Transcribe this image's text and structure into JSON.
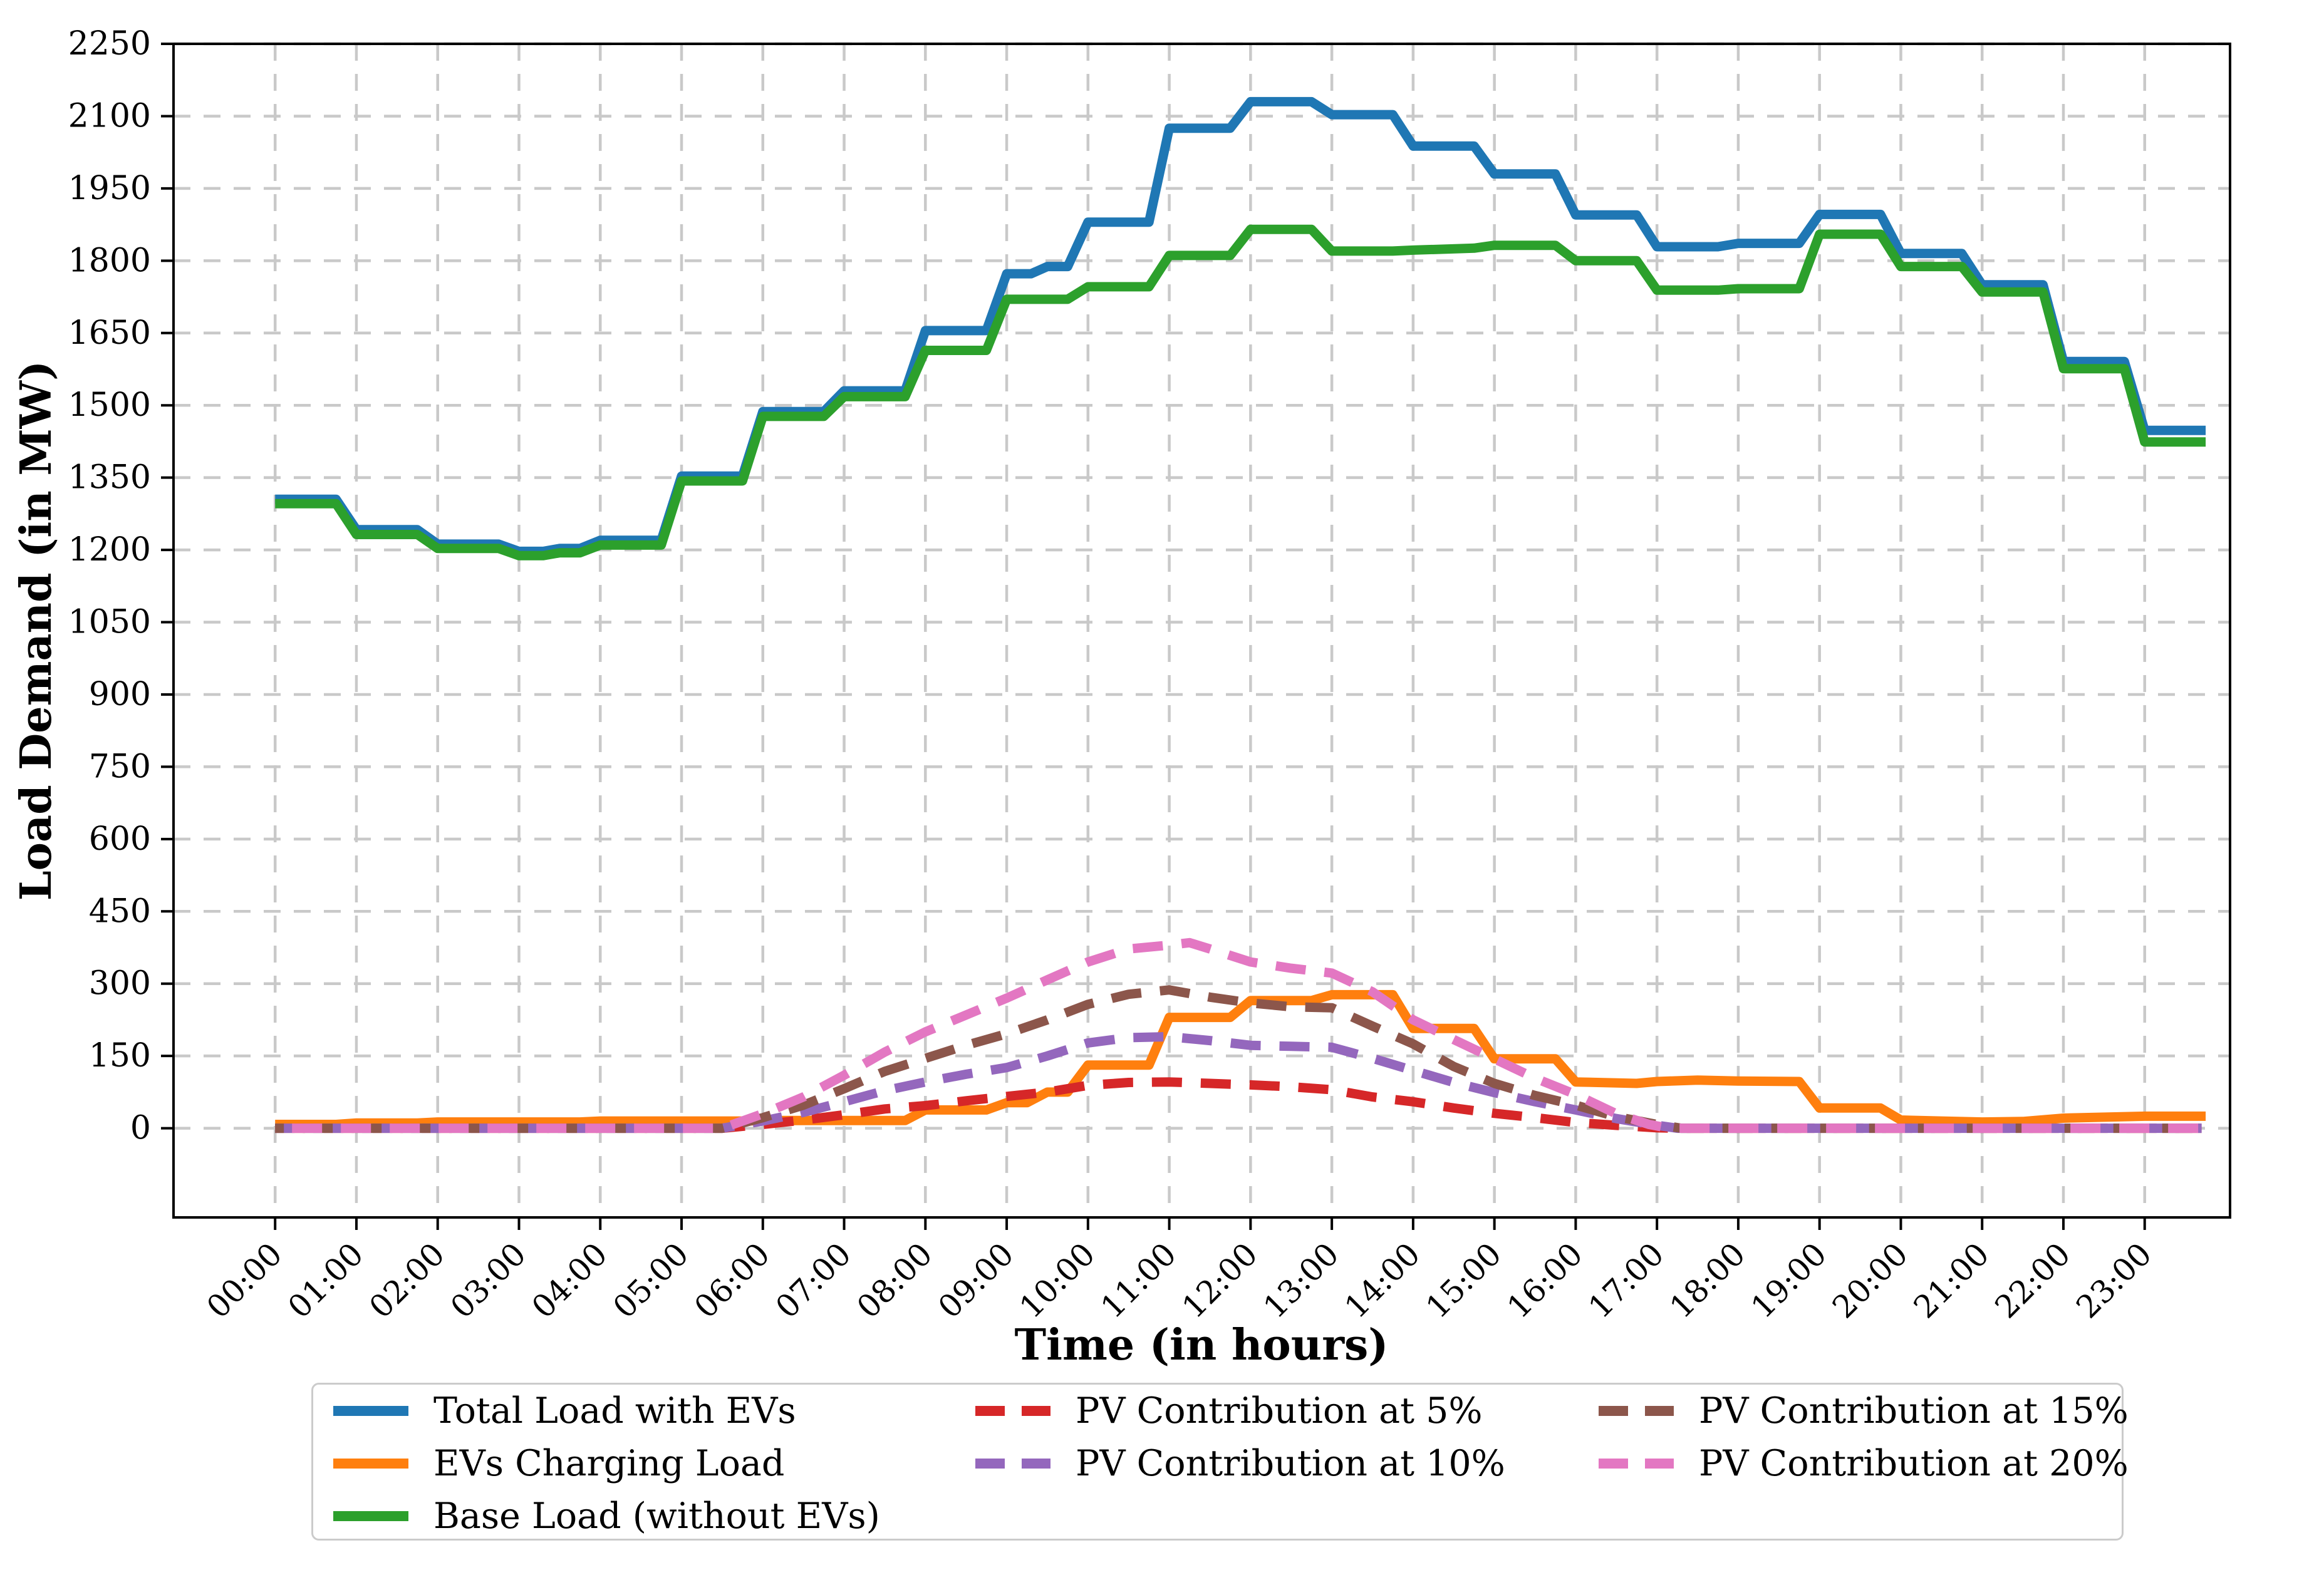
{
  "figure": {
    "x_axis_label": "Time (in hours)",
    "y_axis_label": "Load Demand (in MW)"
  },
  "chart_data": {
    "type": "line",
    "title": "",
    "xlabel": "Time (in hours)",
    "ylabel": "Load Demand (in MW)",
    "grid": true,
    "grid_color": "#c9c9c9",
    "legend_position": "bottom",
    "xlim": [
      -1.25,
      24.05
    ],
    "ylim": [
      -185,
      2250
    ],
    "y_ticks": [
      0,
      150,
      300,
      450,
      600,
      750,
      900,
      1050,
      1200,
      1350,
      1500,
      1650,
      1800,
      1950,
      2100,
      2250
    ],
    "x_tick_hours": [
      0,
      1,
      2,
      3,
      4,
      5,
      6,
      7,
      8,
      9,
      10,
      11,
      12,
      13,
      14,
      15,
      16,
      17,
      18,
      19,
      20,
      21,
      22,
      23
    ],
    "x_tick_labels": [
      "00:00",
      "01:00",
      "02:00",
      "03:00",
      "04:00",
      "05:00",
      "06:00",
      "07:00",
      "08:00",
      "09:00",
      "10:00",
      "11:00",
      "12:00",
      "13:00",
      "14:00",
      "15:00",
      "16:00",
      "17:00",
      "18:00",
      "19:00",
      "20:00",
      "21:00",
      "22:00",
      "23:00"
    ],
    "series": [
      {
        "name": "Total Load with EVs",
        "color": "#1f77b4",
        "dash": "solid",
        "points": [
          [
            0,
            1305
          ],
          [
            0.75,
            1305
          ],
          [
            1,
            1242
          ],
          [
            1.75,
            1242
          ],
          [
            2,
            1212
          ],
          [
            2.75,
            1212
          ],
          [
            3,
            1197
          ],
          [
            3.3,
            1197
          ],
          [
            3.5,
            1203
          ],
          [
            3.75,
            1203
          ],
          [
            4,
            1220
          ],
          [
            4.75,
            1220
          ],
          [
            5,
            1353
          ],
          [
            5.75,
            1353
          ],
          [
            6,
            1487
          ],
          [
            6.75,
            1487
          ],
          [
            7,
            1530
          ],
          [
            7.75,
            1530
          ],
          [
            8,
            1655
          ],
          [
            8.75,
            1655
          ],
          [
            9,
            1773
          ],
          [
            9.3,
            1773
          ],
          [
            9.5,
            1788
          ],
          [
            9.75,
            1788
          ],
          [
            10,
            1880
          ],
          [
            10.75,
            1880
          ],
          [
            11,
            2075
          ],
          [
            11.75,
            2075
          ],
          [
            12,
            2130
          ],
          [
            12.75,
            2130
          ],
          [
            13,
            2103
          ],
          [
            13.75,
            2103
          ],
          [
            14,
            2038
          ],
          [
            14.75,
            2038
          ],
          [
            15,
            1980
          ],
          [
            15.75,
            1980
          ],
          [
            16,
            1895
          ],
          [
            16.75,
            1895
          ],
          [
            17,
            1829
          ],
          [
            17.75,
            1829
          ],
          [
            18,
            1836
          ],
          [
            18.75,
            1836
          ],
          [
            19,
            1896
          ],
          [
            19.75,
            1896
          ],
          [
            20,
            1815
          ],
          [
            20.75,
            1815
          ],
          [
            21,
            1750
          ],
          [
            21.75,
            1750
          ],
          [
            22,
            1591
          ],
          [
            22.75,
            1591
          ],
          [
            23,
            1448
          ],
          [
            23.75,
            1448
          ]
        ]
      },
      {
        "name": "EVs Charging Load",
        "color": "#ff7f0e",
        "dash": "solid",
        "points": [
          [
            0,
            8
          ],
          [
            0.75,
            8
          ],
          [
            1,
            11
          ],
          [
            1.75,
            11
          ],
          [
            2,
            13
          ],
          [
            3.75,
            13
          ],
          [
            4,
            15
          ],
          [
            5.75,
            15
          ],
          [
            6,
            16
          ],
          [
            7.75,
            16
          ],
          [
            8,
            38
          ],
          [
            8.75,
            38
          ],
          [
            9,
            53
          ],
          [
            9.25,
            53
          ],
          [
            9.5,
            75
          ],
          [
            9.75,
            75
          ],
          [
            10,
            131
          ],
          [
            10.75,
            131
          ],
          [
            11,
            230
          ],
          [
            11.75,
            230
          ],
          [
            12,
            265
          ],
          [
            12.75,
            265
          ],
          [
            13,
            277
          ],
          [
            13.75,
            277
          ],
          [
            14,
            207
          ],
          [
            14.75,
            207
          ],
          [
            15,
            144
          ],
          [
            15.75,
            144
          ],
          [
            16,
            96
          ],
          [
            16.75,
            93
          ],
          [
            17,
            97
          ],
          [
            17.5,
            100
          ],
          [
            18,
            98
          ],
          [
            18.75,
            97
          ],
          [
            19,
            42
          ],
          [
            19.75,
            42
          ],
          [
            20,
            17
          ],
          [
            20.5,
            15
          ],
          [
            21,
            13
          ],
          [
            21.5,
            14
          ],
          [
            22,
            21
          ],
          [
            23,
            25
          ],
          [
            23.75,
            25
          ]
        ]
      },
      {
        "name": "Base Load (without EVs)",
        "color": "#2ca02c",
        "dash": "solid",
        "points": [
          [
            0,
            1296
          ],
          [
            0.75,
            1296
          ],
          [
            1,
            1232
          ],
          [
            1.75,
            1232
          ],
          [
            2,
            1203
          ],
          [
            2.75,
            1203
          ],
          [
            3,
            1188
          ],
          [
            3.3,
            1188
          ],
          [
            3.5,
            1194
          ],
          [
            3.75,
            1194
          ],
          [
            4,
            1210
          ],
          [
            4.75,
            1210
          ],
          [
            5,
            1343
          ],
          [
            5.75,
            1343
          ],
          [
            6,
            1477
          ],
          [
            6.75,
            1477
          ],
          [
            7,
            1518
          ],
          [
            7.75,
            1518
          ],
          [
            8,
            1614
          ],
          [
            8.75,
            1614
          ],
          [
            9,
            1720
          ],
          [
            9.75,
            1720
          ],
          [
            10,
            1746
          ],
          [
            10.75,
            1746
          ],
          [
            11,
            1811
          ],
          [
            11.75,
            1811
          ],
          [
            12,
            1865
          ],
          [
            12.75,
            1865
          ],
          [
            13,
            1820
          ],
          [
            13.75,
            1820
          ],
          [
            14,
            1822
          ],
          [
            14.75,
            1826
          ],
          [
            15,
            1832
          ],
          [
            15.75,
            1832
          ],
          [
            16,
            1800
          ],
          [
            16.75,
            1800
          ],
          [
            17,
            1739
          ],
          [
            17.75,
            1739
          ],
          [
            18,
            1742
          ],
          [
            18.75,
            1742
          ],
          [
            19,
            1855
          ],
          [
            19.75,
            1855
          ],
          [
            20,
            1788
          ],
          [
            20.75,
            1788
          ],
          [
            21,
            1735
          ],
          [
            21.75,
            1735
          ],
          [
            22,
            1576
          ],
          [
            22.75,
            1576
          ],
          [
            23,
            1424
          ],
          [
            23.75,
            1424
          ]
        ]
      },
      {
        "name": "PV Contribution at 5%",
        "color": "#d62728",
        "dash": "dashed",
        "points": [
          [
            0,
            0
          ],
          [
            5.5,
            0
          ],
          [
            6,
            8
          ],
          [
            6.5,
            17
          ],
          [
            7,
            28
          ],
          [
            7.5,
            40
          ],
          [
            8,
            47
          ],
          [
            8.5,
            57
          ],
          [
            9,
            66
          ],
          [
            9.5,
            75
          ],
          [
            10,
            89
          ],
          [
            10.5,
            95
          ],
          [
            11,
            96
          ],
          [
            11.5,
            93
          ],
          [
            12,
            90
          ],
          [
            12.5,
            86
          ],
          [
            13,
            80
          ],
          [
            13.5,
            65
          ],
          [
            14,
            55
          ],
          [
            14.5,
            42
          ],
          [
            15,
            31
          ],
          [
            15.5,
            22
          ],
          [
            16,
            12
          ],
          [
            16.5,
            6
          ],
          [
            17,
            1
          ],
          [
            17.25,
            0
          ],
          [
            23.7,
            0
          ]
        ]
      },
      {
        "name": "PV Contribution at 10%",
        "color": "#9467bd",
        "dash": "dashed",
        "points": [
          [
            0,
            0
          ],
          [
            5.5,
            0
          ],
          [
            6,
            15
          ],
          [
            6.5,
            33
          ],
          [
            7,
            55
          ],
          [
            7.5,
            78
          ],
          [
            8,
            96
          ],
          [
            8.5,
            112
          ],
          [
            9,
            126
          ],
          [
            9.5,
            150
          ],
          [
            10,
            177
          ],
          [
            10.5,
            188
          ],
          [
            11,
            190
          ],
          [
            11.5,
            182
          ],
          [
            12,
            172
          ],
          [
            12.5,
            170
          ],
          [
            13,
            168
          ],
          [
            13.5,
            145
          ],
          [
            14,
            120
          ],
          [
            14.5,
            95
          ],
          [
            15,
            74
          ],
          [
            15.5,
            55
          ],
          [
            16,
            38
          ],
          [
            16.5,
            20
          ],
          [
            17,
            6
          ],
          [
            17.25,
            0
          ],
          [
            23.7,
            0
          ]
        ]
      },
      {
        "name": "PV Contribution at 15%",
        "color": "#8c564b",
        "dash": "dashed",
        "points": [
          [
            0,
            0
          ],
          [
            5.5,
            0
          ],
          [
            6,
            22
          ],
          [
            6.5,
            48
          ],
          [
            7,
            82
          ],
          [
            7.5,
            118
          ],
          [
            8,
            145
          ],
          [
            8.5,
            172
          ],
          [
            9,
            196
          ],
          [
            9.5,
            225
          ],
          [
            10,
            257
          ],
          [
            10.5,
            278
          ],
          [
            11,
            287
          ],
          [
            11.5,
            272
          ],
          [
            12,
            260
          ],
          [
            12.5,
            252
          ],
          [
            13,
            250
          ],
          [
            13.5,
            212
          ],
          [
            14,
            175
          ],
          [
            14.5,
            128
          ],
          [
            15,
            93
          ],
          [
            15.5,
            68
          ],
          [
            16,
            48
          ],
          [
            16.5,
            24
          ],
          [
            17,
            8
          ],
          [
            17.3,
            0
          ],
          [
            23.7,
            0
          ]
        ]
      },
      {
        "name": "PV Contribution at 20%",
        "color": "#e377c2",
        "dash": "dashed",
        "points": [
          [
            0,
            0
          ],
          [
            5.5,
            0
          ],
          [
            6,
            30
          ],
          [
            6.5,
            65
          ],
          [
            7,
            110
          ],
          [
            7.5,
            158
          ],
          [
            8,
            200
          ],
          [
            8.5,
            235
          ],
          [
            9,
            270
          ],
          [
            9.5,
            308
          ],
          [
            10,
            345
          ],
          [
            10.5,
            372
          ],
          [
            11,
            380
          ],
          [
            11.25,
            385
          ],
          [
            11.5,
            372
          ],
          [
            12,
            345
          ],
          [
            12.5,
            332
          ],
          [
            13,
            322
          ],
          [
            13.5,
            283
          ],
          [
            14,
            225
          ],
          [
            14.5,
            184
          ],
          [
            15,
            144
          ],
          [
            15.5,
            104
          ],
          [
            16,
            70
          ],
          [
            16.5,
            30
          ],
          [
            16.9,
            8
          ],
          [
            17.15,
            0
          ],
          [
            23.7,
            0
          ]
        ]
      }
    ],
    "legend_columns": [
      [
        0,
        1,
        2
      ],
      [
        3,
        4
      ],
      [
        5,
        6
      ]
    ]
  }
}
